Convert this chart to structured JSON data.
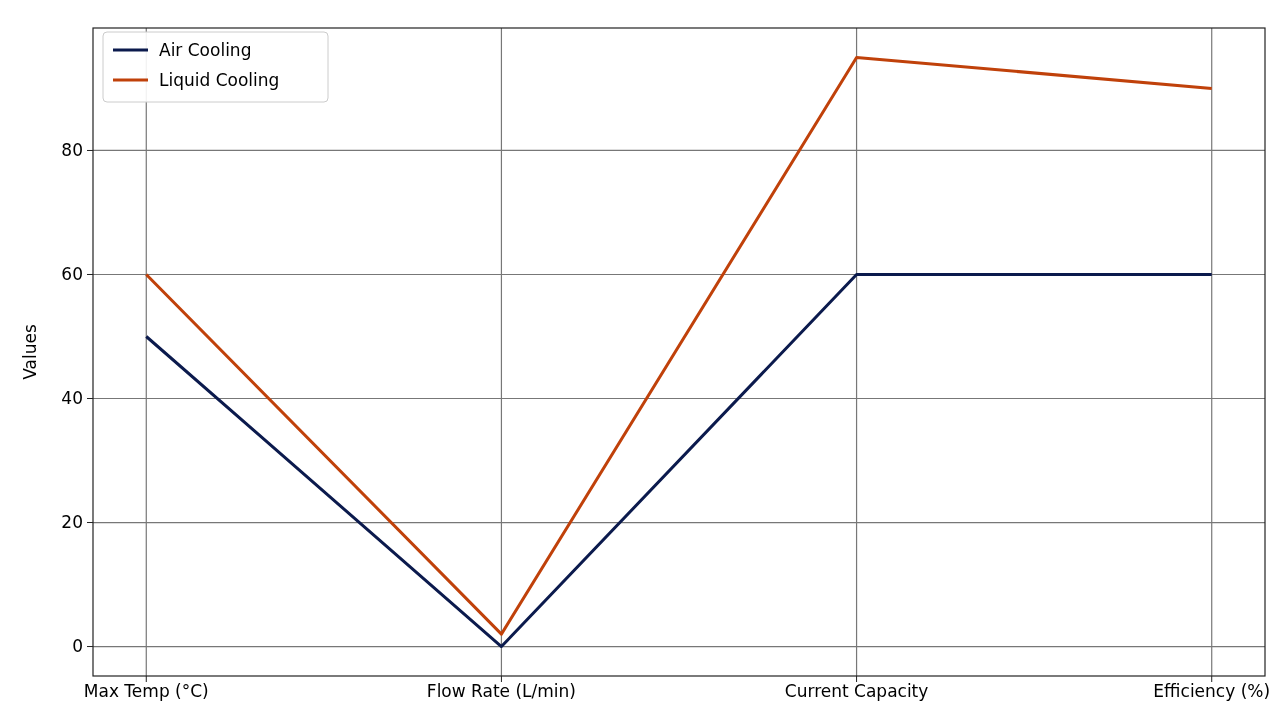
{
  "chart_data": {
    "type": "line",
    "ylabel": "Values",
    "categories": [
      "Max Temp (°C)",
      "Flow Rate (L/min)",
      "Current Capacity",
      "Efficiency (%)"
    ],
    "series": [
      {
        "name": "Air Cooling",
        "color": "#0b1a4d",
        "values": [
          50,
          0,
          60,
          60
        ]
      },
      {
        "name": "Liquid Cooling",
        "color": "#c0410a",
        "values": [
          60,
          2,
          95,
          90
        ]
      }
    ],
    "ylim": [
      -4.75,
      99.75
    ],
    "yticks": [
      0,
      20,
      40,
      60,
      80
    ],
    "grid": true,
    "legend": "top left",
    "marker": "none",
    "line_style": "solid"
  }
}
